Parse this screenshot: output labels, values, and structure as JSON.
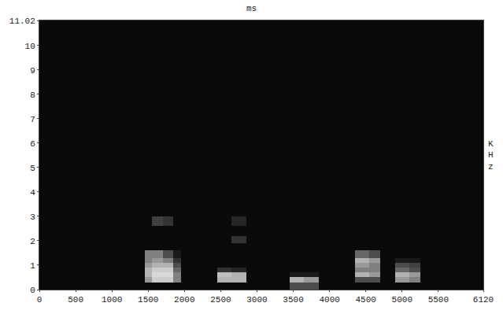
{
  "chart_data": {
    "type": "heatmap",
    "title": "ms",
    "y_label": "KHz",
    "color": "#ffffff",
    "grid": false,
    "xlim": [
      0,
      6120
    ],
    "ylim": [
      0,
      11.02
    ],
    "xticks": [
      0,
      500,
      1000,
      1500,
      2000,
      2500,
      3000,
      3500,
      4000,
      4500,
      5000,
      5500,
      6120
    ],
    "yticks": [
      0,
      1,
      2,
      3,
      4,
      5,
      6,
      7,
      8,
      9,
      10,
      11.02
    ],
    "zlim": [
      0,
      1
    ],
    "x": [
      0,
      1450,
      1550,
      1700,
      1850,
      1950,
      2450,
      2650,
      2850,
      3450,
      3650,
      3850,
      4350,
      4550,
      4700,
      4900,
      5100,
      5250,
      6120
    ],
    "y": [
      0,
      0.3,
      0.5,
      0.7,
      0.9,
      1.1,
      1.3,
      1.6,
      1.9,
      2.2,
      2.6,
      3.0,
      11.02
    ],
    "z": [
      [
        0.04,
        0.04,
        0.04,
        0.04,
        0.04,
        0.04,
        0.04,
        0.04,
        0.04,
        0.3,
        0.3,
        0.04,
        0.04,
        0.04,
        0.04,
        0.04,
        0.04,
        0.04
      ],
      [
        0.04,
        0.6,
        0.8,
        0.8,
        0.5,
        0.04,
        0.7,
        0.7,
        0.04,
        0.7,
        0.6,
        0.04,
        0.3,
        0.3,
        0.04,
        0.6,
        0.5,
        0.04
      ],
      [
        0.04,
        0.7,
        0.85,
        0.85,
        0.5,
        0.04,
        0.75,
        0.7,
        0.04,
        0.1,
        0.1,
        0.04,
        0.7,
        0.6,
        0.04,
        0.7,
        0.6,
        0.04
      ],
      [
        0.04,
        0.7,
        0.8,
        0.8,
        0.4,
        0.04,
        0.2,
        0.15,
        0.04,
        0.04,
        0.04,
        0.04,
        0.5,
        0.5,
        0.04,
        0.4,
        0.3,
        0.04
      ],
      [
        0.04,
        0.6,
        0.7,
        0.7,
        0.3,
        0.04,
        0.04,
        0.04,
        0.04,
        0.04,
        0.04,
        0.04,
        0.6,
        0.5,
        0.04,
        0.3,
        0.25,
        0.04
      ],
      [
        0.04,
        0.5,
        0.6,
        0.5,
        0.2,
        0.04,
        0.04,
        0.04,
        0.04,
        0.04,
        0.04,
        0.04,
        0.7,
        0.6,
        0.04,
        0.1,
        0.1,
        0.04
      ],
      [
        0.04,
        0.5,
        0.5,
        0.3,
        0.1,
        0.04,
        0.04,
        0.04,
        0.04,
        0.04,
        0.04,
        0.04,
        0.4,
        0.3,
        0.04,
        0.04,
        0.04,
        0.04
      ],
      [
        0.04,
        0.04,
        0.04,
        0.04,
        0.04,
        0.04,
        0.04,
        0.04,
        0.04,
        0.04,
        0.04,
        0.04,
        0.04,
        0.04,
        0.04,
        0.04,
        0.04,
        0.04
      ],
      [
        0.04,
        0.04,
        0.04,
        0.04,
        0.04,
        0.04,
        0.04,
        0.2,
        0.04,
        0.04,
        0.04,
        0.04,
        0.04,
        0.04,
        0.04,
        0.04,
        0.04,
        0.04
      ],
      [
        0.04,
        0.04,
        0.04,
        0.04,
        0.04,
        0.04,
        0.04,
        0.04,
        0.04,
        0.04,
        0.04,
        0.04,
        0.04,
        0.04,
        0.04,
        0.04,
        0.04,
        0.04
      ],
      [
        0.04,
        0.04,
        0.25,
        0.2,
        0.04,
        0.04,
        0.04,
        0.15,
        0.04,
        0.04,
        0.04,
        0.04,
        0.04,
        0.04,
        0.04,
        0.04,
        0.04,
        0.04
      ],
      [
        0.04,
        0.04,
        0.04,
        0.04,
        0.04,
        0.04,
        0.04,
        0.04,
        0.04,
        0.04,
        0.04,
        0.04,
        0.04,
        0.04,
        0.04,
        0.04,
        0.04,
        0.04
      ]
    ]
  }
}
